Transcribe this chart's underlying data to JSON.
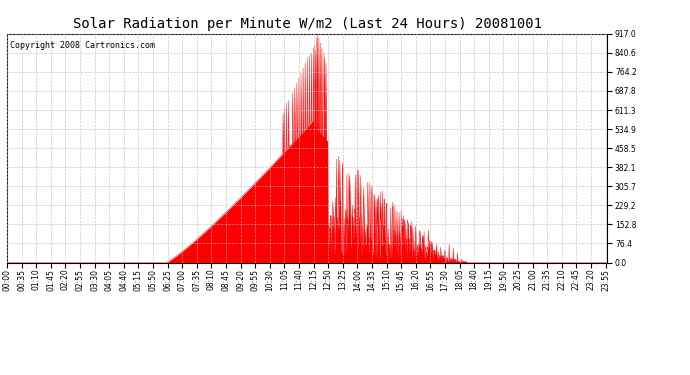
{
  "title": "Solar Radiation per Minute W/m2 (Last 24 Hours) 20081001",
  "copyright_text": "Copyright 2008 Cartronics.com",
  "y_max": 917.0,
  "y_ticks": [
    0.0,
    76.4,
    152.8,
    229.2,
    305.7,
    382.1,
    458.5,
    534.9,
    611.3,
    687.8,
    764.2,
    840.6,
    917.0
  ],
  "fill_color": "#FF0000",
  "line_color": "#FF0000",
  "grid_color": "#BBBBBB",
  "bg_color": "#FFFFFF",
  "title_fontsize": 10,
  "copyright_fontsize": 6,
  "tick_fontsize": 5.5,
  "tick_interval_minutes": 35
}
